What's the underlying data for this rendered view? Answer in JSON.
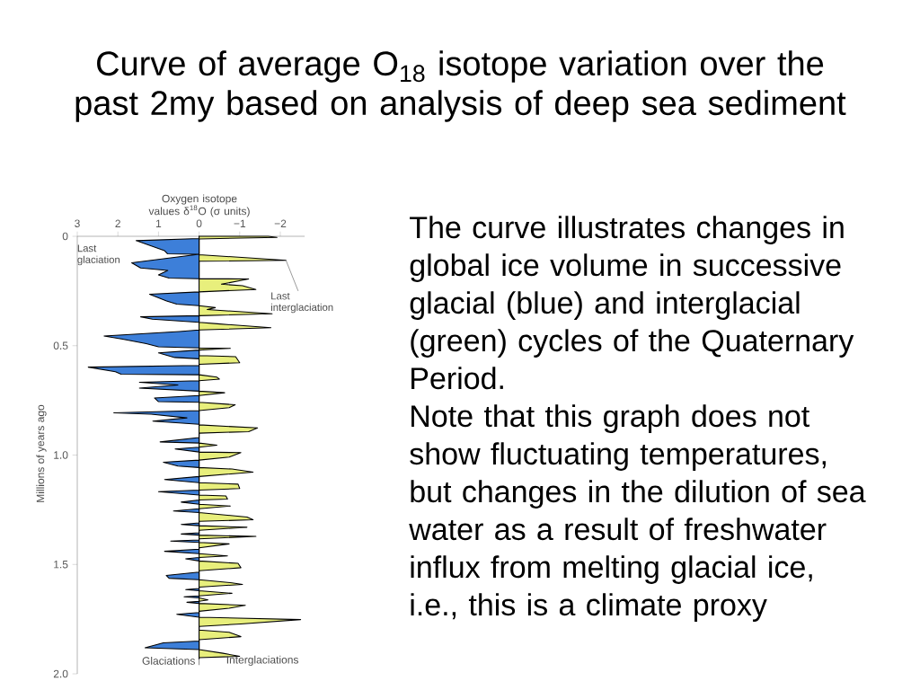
{
  "chart_data": {
    "type": "area",
    "title": "Curve of average O$_{18}$ isotope variation over the past 2my based on analysis of deep sea sediment",
    "xlabel": "Oxygen isotope values δ$^{18}$O (σ units)",
    "ylabel": "Millions of years ago",
    "xlim": [
      3,
      -2.6
    ],
    "ylim": [
      2,
      0
    ],
    "xticks": [
      3,
      2,
      1,
      0,
      {
        "value": -1,
        "label": "−1"
      },
      {
        "value": -2,
        "label": "−2"
      }
    ],
    "yticks": [
      0,
      0.5,
      {
        "value": 1,
        "label": "1.0"
      },
      1.5,
      {
        "value": 2,
        "label": "2.0"
      }
    ],
    "ref_lines": [
      {
        "axis": "x",
        "value": 0,
        "color": "#8c8c8c"
      }
    ],
    "series": [
      {
        "name": "Glaciations",
        "color": "#3d7fd9",
        "x": [
          0,
          0,
          1.55,
          0.85,
          0.78,
          0,
          1.66,
          1.44,
          0.77,
          1.0,
          0.74,
          0,
          0,
          1.22,
          0.8,
          0.55,
          0,
          0,
          1.44,
          1.15,
          0,
          0,
          0.48,
          2.34,
          1.88,
          1.3,
          1.0,
          0,
          0,
          1.0,
          0.6,
          0,
          0,
          2.73,
          2.06,
          1.92,
          0,
          0,
          1.47,
          0.52,
          1.47,
          0,
          0,
          1.1,
          1.0,
          0,
          0,
          2.1,
          1.18,
          0.3,
          1.14,
          0,
          0,
          0.96,
          0,
          0,
          0.59,
          0,
          0,
          0.88,
          0.52,
          0,
          0,
          0.85,
          0,
          0,
          1.0,
          0,
          0,
          0.44,
          0,
          0,
          0.63,
          0,
          0,
          0.44,
          0,
          0,
          0.44,
          0,
          0,
          0.7,
          0,
          0,
          0.85,
          0,
          0,
          0.33,
          0,
          0,
          0.81,
          0.74,
          0,
          0,
          0.33,
          0,
          0,
          0.37,
          0,
          0,
          0.3,
          0,
          0,
          0.55,
          0,
          0,
          0.88,
          1.33,
          0,
          0
        ],
        "values": [
          0,
          0.01,
          0.02,
          0.066,
          0.08,
          0.082,
          0.121,
          0.145,
          0.156,
          0.177,
          0.191,
          0.194,
          0.254,
          0.265,
          0.296,
          0.31,
          0.317,
          0.363,
          0.368,
          0.379,
          0.393,
          0.428,
          0.435,
          0.456,
          0.47,
          0.491,
          0.505,
          0.51,
          0.52,
          0.533,
          0.554,
          0.56,
          0.59,
          0.598,
          0.619,
          0.63,
          0.633,
          0.66,
          0.667,
          0.68,
          0.694,
          0.708,
          0.728,
          0.739,
          0.756,
          0.759,
          0.797,
          0.807,
          0.813,
          0.83,
          0.845,
          0.859,
          0.92,
          0.94,
          0.945,
          0.964,
          0.972,
          0.986,
          1.023,
          1.033,
          1.05,
          1.057,
          1.098,
          1.112,
          1.126,
          1.16,
          1.167,
          1.183,
          1.205,
          1.215,
          1.225,
          1.245,
          1.256,
          1.263,
          1.31,
          1.317,
          1.323,
          1.355,
          1.361,
          1.366,
          1.388,
          1.393,
          1.399,
          1.43,
          1.44,
          1.451,
          1.468,
          1.474,
          1.484,
          1.535,
          1.55,
          1.563,
          1.57,
          1.61,
          1.615,
          1.62,
          1.644,
          1.648,
          1.653,
          1.668,
          1.673,
          1.678,
          1.72,
          1.728,
          1.741,
          1.85,
          1.858,
          1.881,
          1.889,
          1.93
        ]
      },
      {
        "name": "Interglaciations",
        "color": "#e8ef7c",
        "x": [
          0,
          -1.7,
          -1.92,
          0,
          0,
          -2.14,
          0,
          0,
          -1.22,
          -0.55,
          -1.07,
          -1.4,
          0,
          0,
          -0.4,
          -0.2,
          -1.8,
          0,
          0,
          -0.45,
          -1.77,
          0,
          0,
          -0.77,
          0,
          0,
          -0.9,
          -1.0,
          0,
          0,
          -0.44,
          -0.5,
          0,
          0,
          -0.63,
          0,
          0,
          -0.89,
          -0.74,
          0,
          0,
          -1.44,
          -1.22,
          0,
          0,
          -0.44,
          0,
          0,
          -1.03,
          -0.74,
          0,
          0,
          -0.81,
          -1.33,
          0,
          0,
          -0.96,
          -1.0,
          0,
          0,
          -0.66,
          -0.7,
          0,
          0,
          -0.77,
          0,
          0,
          -1.18,
          -1.33,
          0,
          0,
          -1.18,
          0,
          0,
          -1.4,
          0,
          0,
          -0.74,
          0,
          0,
          -0.7,
          0,
          0,
          -0.96,
          -1.03,
          0,
          0,
          -0.81,
          -1.07,
          0,
          0,
          -0.81,
          0,
          0,
          -0.22,
          0,
          0,
          -1.14,
          -0.74,
          0,
          0,
          -2.5,
          -1.03,
          0,
          0,
          -0.74,
          -1.03,
          0,
          0,
          -0.59,
          -1.0,
          0,
          0
        ],
        "values": [
          0,
          0,
          0.005,
          0.012,
          0.084,
          0.11,
          0.114,
          0.194,
          0.195,
          0.219,
          0.226,
          0.243,
          0.254,
          0.317,
          0.326,
          0.335,
          0.354,
          0.363,
          0.393,
          0.4,
          0.418,
          0.428,
          0.51,
          0.512,
          0.52,
          0.545,
          0.55,
          0.578,
          0.585,
          0.633,
          0.644,
          0.653,
          0.66,
          0.708,
          0.715,
          0.728,
          0.759,
          0.77,
          0.783,
          0.797,
          0.862,
          0.876,
          0.893,
          0.9,
          0.945,
          0.955,
          0.964,
          0.986,
          0.989,
          1.009,
          1.023,
          1.057,
          1.064,
          1.078,
          1.098,
          1.126,
          1.133,
          1.153,
          1.16,
          1.183,
          1.187,
          1.201,
          1.205,
          1.225,
          1.233,
          1.245,
          1.263,
          1.283,
          1.296,
          1.303,
          1.323,
          1.33,
          1.344,
          1.366,
          1.372,
          1.383,
          1.399,
          1.406,
          1.424,
          1.451,
          1.461,
          1.468,
          1.484,
          1.495,
          1.515,
          1.529,
          1.57,
          1.584,
          1.591,
          1.604,
          1.62,
          1.632,
          1.644,
          1.653,
          1.662,
          1.668,
          1.678,
          1.687,
          1.7,
          1.714,
          1.741,
          1.752,
          1.772,
          1.783,
          1.8,
          1.81,
          1.83,
          1.844,
          1.889,
          1.906,
          1.92,
          1.926,
          1.93
        ]
      }
    ],
    "annotations": [
      {
        "text": "Last glaciation",
        "x": 1.55,
        "y": 0.02
      },
      {
        "text": "Last interglaciation",
        "x": -2.14,
        "y": 0.11
      },
      "The curve illustrates changes in global ice volume in successive glacial (blue) and interglacial (green) cycles of the Quaternary Period.",
      "Note that this graph does not show fluctuating temperatures, but changes in the dilution of sea water as a result of freshwater influx from melting glacial ice, i.e., this is a climate proxy"
    ]
  }
}
